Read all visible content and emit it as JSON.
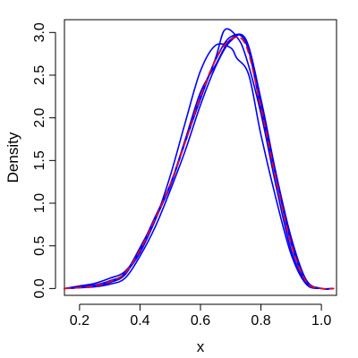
{
  "chart_data": {
    "type": "line",
    "title": "",
    "xlabel": "x",
    "ylabel": "Density",
    "xlim": [
      0.15,
      1.05
    ],
    "ylim": [
      -0.08,
      3.15
    ],
    "xticks": [
      0.2,
      0.4,
      0.6,
      0.8,
      1.0
    ],
    "xtick_labels": [
      "0.2",
      "0.4",
      "0.6",
      "0.8",
      "1.0"
    ],
    "yticks": [
      0.0,
      0.5,
      1.0,
      1.5,
      2.0,
      2.5,
      3.0
    ],
    "ytick_labels": [
      "0.0",
      "0.5",
      "1.0",
      "1.5",
      "2.0",
      "2.5",
      "3.0"
    ],
    "grid": false,
    "legend": "none",
    "series": [
      {
        "style": "solid",
        "color": "#0000ff",
        "x": [
          0.15,
          0.2,
          0.25,
          0.3,
          0.35,
          0.4,
          0.45,
          0.5,
          0.55,
          0.6,
          0.65,
          0.68,
          0.72,
          0.75,
          0.8,
          0.85,
          0.9,
          0.95,
          1.0,
          1.04
        ],
        "y": [
          0.0,
          0.02,
          0.04,
          0.07,
          0.18,
          0.42,
          0.8,
          1.22,
          1.72,
          2.25,
          2.7,
          3.03,
          2.95,
          2.72,
          2.05,
          1.2,
          0.45,
          0.06,
          0.0,
          0.0
        ]
      },
      {
        "style": "solid",
        "color": "#0000ff",
        "x": [
          0.15,
          0.2,
          0.25,
          0.3,
          0.35,
          0.4,
          0.45,
          0.5,
          0.55,
          0.6,
          0.65,
          0.7,
          0.72,
          0.76,
          0.8,
          0.85,
          0.9,
          0.95,
          1.0,
          1.04
        ],
        "y": [
          0.0,
          0.03,
          0.06,
          0.12,
          0.2,
          0.44,
          0.8,
          1.32,
          1.95,
          2.55,
          2.85,
          2.82,
          2.7,
          2.5,
          1.8,
          1.05,
          0.4,
          0.05,
          0.0,
          0.0
        ]
      },
      {
        "style": "solid",
        "color": "#0000ff",
        "x": [
          0.15,
          0.2,
          0.25,
          0.3,
          0.35,
          0.4,
          0.45,
          0.5,
          0.55,
          0.6,
          0.65,
          0.7,
          0.75,
          0.8,
          0.85,
          0.9,
          0.95,
          1.0,
          1.04
        ],
        "y": [
          0.0,
          0.02,
          0.04,
          0.09,
          0.18,
          0.48,
          0.82,
          1.2,
          1.72,
          2.22,
          2.68,
          2.95,
          2.88,
          2.15,
          1.3,
          0.55,
          0.08,
          0.0,
          0.0
        ]
      },
      {
        "style": "solid",
        "color": "#0000ff",
        "x": [
          0.15,
          0.2,
          0.25,
          0.3,
          0.35,
          0.4,
          0.45,
          0.5,
          0.55,
          0.6,
          0.65,
          0.7,
          0.75,
          0.8,
          0.85,
          0.9,
          0.95,
          1.0,
          1.04
        ],
        "y": [
          0.0,
          0.01,
          0.03,
          0.07,
          0.16,
          0.46,
          0.84,
          1.22,
          1.75,
          2.3,
          2.62,
          2.92,
          2.9,
          2.1,
          1.3,
          0.52,
          0.08,
          0.0,
          0.0
        ]
      },
      {
        "style": "solid",
        "color": "#0000ff",
        "x": [
          0.15,
          0.2,
          0.25,
          0.3,
          0.35,
          0.4,
          0.45,
          0.5,
          0.55,
          0.6,
          0.65,
          0.7,
          0.75,
          0.8,
          0.85,
          0.9,
          0.95,
          1.0,
          1.04
        ],
        "y": [
          0.0,
          0.01,
          0.02,
          0.05,
          0.12,
          0.38,
          0.72,
          1.15,
          1.62,
          2.15,
          2.6,
          2.9,
          2.92,
          2.22,
          1.35,
          0.6,
          0.1,
          0.0,
          0.0
        ]
      },
      {
        "style": "dashed",
        "color": "#ff0000",
        "x": [
          0.15,
          0.2,
          0.25,
          0.3,
          0.35,
          0.4,
          0.45,
          0.5,
          0.55,
          0.6,
          0.65,
          0.7,
          0.75,
          0.8,
          0.85,
          0.9,
          0.95,
          1.0,
          1.04
        ],
        "y": [
          0.0,
          0.01,
          0.03,
          0.08,
          0.18,
          0.45,
          0.82,
          1.22,
          1.72,
          2.25,
          2.68,
          2.92,
          2.85,
          2.12,
          1.28,
          0.52,
          0.08,
          0.0,
          0.0
        ]
      }
    ]
  }
}
